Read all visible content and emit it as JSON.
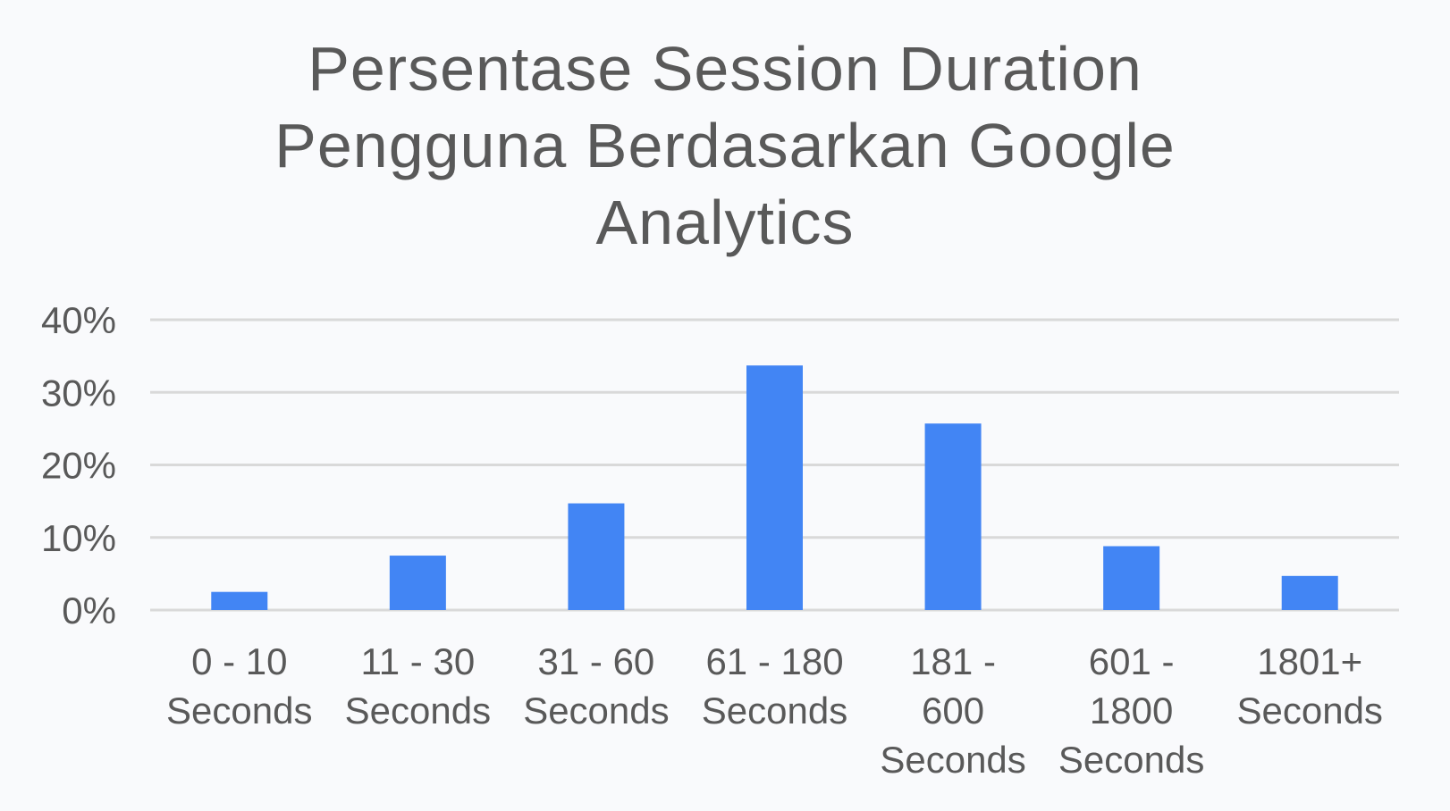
{
  "chart_data": {
    "type": "bar",
    "title_lines": [
      "Persentase Session Duration",
      "Pengguna Berdasarkan Google",
      "Analytics"
    ],
    "categories": [
      [
        "0 - 10",
        "Seconds"
      ],
      [
        "11 - 30",
        "Seconds"
      ],
      [
        "31 - 60",
        "Seconds"
      ],
      [
        "61 - 180",
        "Seconds"
      ],
      [
        "181 -",
        "600",
        "Seconds"
      ],
      [
        "601 -",
        "1800",
        "Seconds"
      ],
      [
        "1801+",
        "Seconds"
      ]
    ],
    "values": [
      2.5,
      7.5,
      14.7,
      33.7,
      25.7,
      8.8,
      4.7
    ],
    "ylim": [
      0,
      40
    ],
    "yticks": [
      0,
      10,
      20,
      30,
      40
    ],
    "ytick_labels": [
      "0%",
      "10%",
      "20%",
      "30%",
      "40%"
    ],
    "grid": true,
    "legend": "none",
    "colors": {
      "bar": "#4285f4",
      "text": "#595959",
      "grid": "#d9d9d9"
    }
  }
}
